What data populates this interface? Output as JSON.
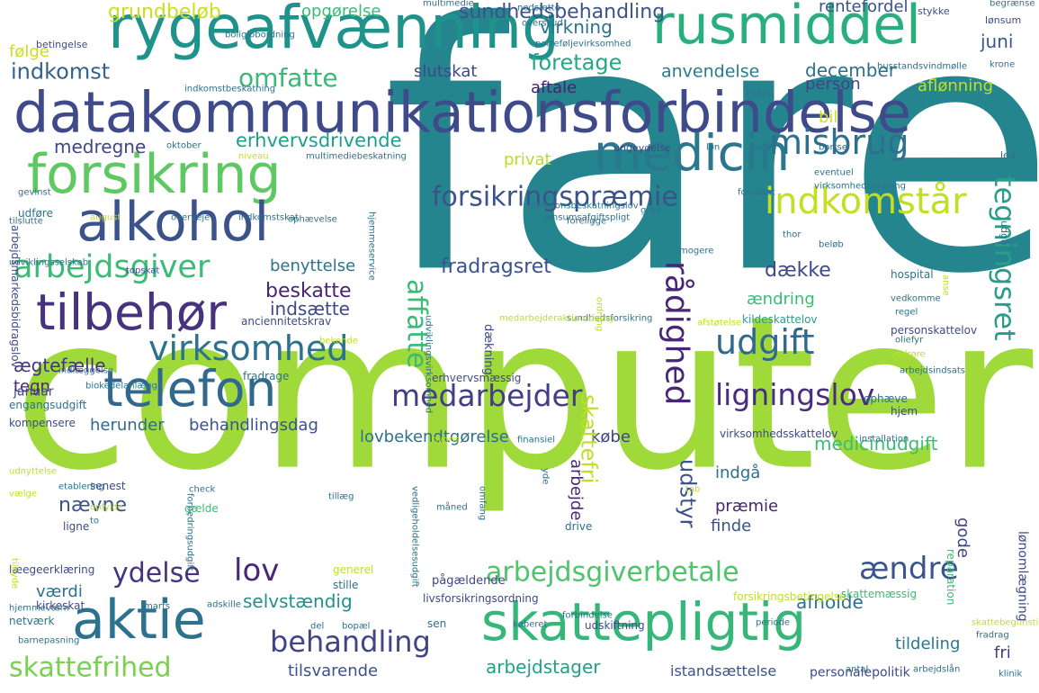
{
  "words": [
    {
      "text": "fare",
      "color": "#25858e"
    },
    {
      "text": "computer",
      "color": "#9fda3a"
    },
    {
      "text": "datakommunikationsforbindelse",
      "color": "#3e4a89"
    },
    {
      "text": "rygeafvænning",
      "color": "#20928c"
    },
    {
      "text": "rusmiddel",
      "color": "#29af7f"
    },
    {
      "text": "forsikring",
      "color": "#5ec962"
    },
    {
      "text": "medicin",
      "color": "#2a788e"
    },
    {
      "text": "alkohol",
      "color": "#3b528b"
    },
    {
      "text": "telefon",
      "color": "#31688e"
    },
    {
      "text": "aktie",
      "color": "#2c728e"
    },
    {
      "text": "skattepligtig",
      "color": "#35b779"
    },
    {
      "text": "tilbehør",
      "color": "#46327e"
    },
    {
      "text": "arbejdsgiver",
      "color": "#3bbb75"
    },
    {
      "text": "virksomhed",
      "color": "#2c728e"
    },
    {
      "text": "misbrug",
      "color": "#2d708e"
    },
    {
      "text": "indkomstår",
      "color": "#c2df23"
    },
    {
      "text": "forsikringspræmie",
      "color": "#3b528b"
    },
    {
      "text": "udgift",
      "color": "#31688e"
    },
    {
      "text": "rådighed",
      "color": "#482576"
    },
    {
      "text": "tegningsret",
      "color": "#2a9d8a"
    },
    {
      "text": "medarbejder",
      "color": "#433e85"
    },
    {
      "text": "ligningslov",
      "color": "#472d7b"
    },
    {
      "text": "behandling",
      "color": "#414487"
    },
    {
      "text": "arbejdsgiverbetale",
      "color": "#50c46a"
    },
    {
      "text": "ændre",
      "color": "#3a548c"
    },
    {
      "text": "skattefrihed",
      "color": "#7ad151"
    },
    {
      "text": "lov",
      "color": "#482878"
    },
    {
      "text": "ydelse",
      "color": "#46337e"
    },
    {
      "text": "omfatte",
      "color": "#38b977"
    },
    {
      "text": "sundhedsbehandling",
      "color": "#3b528b"
    },
    {
      "text": "grundbeløb",
      "color": "#c8e020"
    },
    {
      "text": "foretage",
      "color": "#22a884"
    },
    {
      "text": "virkning",
      "color": "#2c728e"
    },
    {
      "text": "opgørelse",
      "color": "#3bbb75"
    },
    {
      "text": "følge",
      "color": "#c8e020"
    },
    {
      "text": "indkomst",
      "color": "#33628d"
    },
    {
      "text": "juni",
      "color": "#38598c"
    },
    {
      "text": "december",
      "color": "#2d708e"
    },
    {
      "text": "anvendelse",
      "color": "#297a8e"
    },
    {
      "text": "aftale",
      "color": "#482173"
    },
    {
      "text": "slutskat",
      "color": "#3f4889"
    },
    {
      "text": "person",
      "color": "#414487"
    },
    {
      "text": "bil",
      "color": "#d0e11c"
    },
    {
      "text": "aflønning",
      "color": "#c2df23"
    },
    {
      "text": "rentefordel",
      "color": "#3b528b"
    },
    {
      "text": "erhvervsdrivende",
      "color": "#1f9e89"
    },
    {
      "text": "medregne",
      "color": "#404688"
    },
    {
      "text": "privat",
      "color": "#b5de2b"
    },
    {
      "text": "fradragsret",
      "color": "#3b528b"
    },
    {
      "text": "dække",
      "color": "#3f4889"
    },
    {
      "text": "affatte",
      "color": "#3bbb75"
    },
    {
      "text": "beskatte",
      "color": "#482475"
    },
    {
      "text": "indsætte",
      "color": "#3f4889"
    },
    {
      "text": "benyttelse",
      "color": "#2c728e"
    },
    {
      "text": "ændring",
      "color": "#3bbb75"
    },
    {
      "text": "ægtefælle",
      "color": "#46337e"
    },
    {
      "text": "tegn",
      "color": "#482475"
    },
    {
      "text": "januar",
      "color": "#414487"
    },
    {
      "text": "herunder",
      "color": "#31688e"
    },
    {
      "text": "behandlingsdag",
      "color": "#3b528b"
    },
    {
      "text": "lovbekendtgørelse",
      "color": "#2d708e"
    },
    {
      "text": "købe",
      "color": "#414487"
    },
    {
      "text": "skattefri",
      "color": "#bddf26"
    },
    {
      "text": "medicinudgift",
      "color": "#3bbb75"
    },
    {
      "text": "nævne",
      "color": "#3b528b"
    },
    {
      "text": "udstyr",
      "color": "#3b528b"
    },
    {
      "text": "præmie",
      "color": "#482475"
    },
    {
      "text": "arbejde",
      "color": "#482878"
    },
    {
      "text": "indgå",
      "color": "#2d708e"
    },
    {
      "text": "gode",
      "color": "#414487"
    },
    {
      "text": "finde",
      "color": "#3b528b"
    },
    {
      "text": "værdi",
      "color": "#2c728e"
    },
    {
      "text": "selvstændig",
      "color": "#21918c"
    },
    {
      "text": "afholde",
      "color": "#2d708e"
    },
    {
      "text": "tildeling",
      "color": "#2a788e"
    },
    {
      "text": "fri",
      "color": "#433e85"
    },
    {
      "text": "arbejdstager",
      "color": "#1fa187"
    },
    {
      "text": "tilsvarende",
      "color": "#3b528b"
    },
    {
      "text": "istandsættelse",
      "color": "#3b528b"
    },
    {
      "text": "personalepolitik",
      "color": "#3e4a89"
    },
    {
      "text": "lønomlægning",
      "color": "#3e4a89"
    },
    {
      "text": "drive",
      "color": "#2d708e"
    },
    {
      "text": "engangsudgift",
      "color": "#2c728e"
    },
    {
      "text": "kompensere",
      "color": "#3e4a89"
    },
    {
      "text": "fradrage",
      "color": "#2c728e"
    },
    {
      "text": "ophæve",
      "color": "#2d708e"
    },
    {
      "text": "hjem",
      "color": "#3e4a89"
    },
    {
      "text": "anciennitetskrav",
      "color": "#3e4a89"
    },
    {
      "text": "kildeskattelov",
      "color": "#2a9d8a"
    },
    {
      "text": "personskattelov",
      "color": "#3e4a89"
    },
    {
      "text": "hospital",
      "color": "#2c728e"
    },
    {
      "text": "virksomhedsskattelov",
      "color": "#3e4a89"
    },
    {
      "text": "erhvervsmæssig",
      "color": "#3e4a89"
    },
    {
      "text": "dækning",
      "color": "#3e4a89"
    },
    {
      "text": "livsforsikringsordning",
      "color": "#3e4a89"
    },
    {
      "text": "pågældende",
      "color": "#414487"
    },
    {
      "text": "generel",
      "color": "#bddf26"
    },
    {
      "text": "stille",
      "color": "#2c728e"
    },
    {
      "text": "læegeerklæring",
      "color": "#3e4a89"
    },
    {
      "text": "kirkeskat",
      "color": "#3e4a89"
    },
    {
      "text": "netværk",
      "color": "#2c728e"
    },
    {
      "text": "sen",
      "color": "#2c728e"
    },
    {
      "text": "udskiftning",
      "color": "#3e4a89"
    },
    {
      "text": "forsikringsbetingelse",
      "color": "#c2df23"
    },
    {
      "text": "reparation",
      "color": "#3bbb75"
    },
    {
      "text": "skattemæssig",
      "color": "#3bbb75"
    },
    {
      "text": "senest",
      "color": "#3e4a89"
    },
    {
      "text": "ligne",
      "color": "#3e4a89"
    },
    {
      "text": "gælde",
      "color": "#3bbb75"
    },
    {
      "text": "betingelse",
      "color": "#3e4a89"
    },
    {
      "text": "stykke",
      "color": "#3e4a89"
    },
    {
      "text": "lønsum",
      "color": "#3e4a89"
    },
    {
      "text": "inden",
      "color": "#2c728e"
    },
    {
      "text": "udgå",
      "color": "#2c728e"
    },
    {
      "text": "led",
      "color": "#2c728e"
    },
    {
      "text": "ungeydelse",
      "color": "#3e4a89"
    },
    {
      "text": "arbejdsmarkedsbidragslov",
      "color": "#3e4a89"
    },
    {
      "text": "udføre",
      "color": "#2c728e"
    },
    {
      "text": "udviklingsselskab",
      "color": "#2c728e"
    },
    {
      "text": "topskat",
      "color": "#3e4a89"
    },
    {
      "text": "tilslutte",
      "color": "#2c728e"
    },
    {
      "text": "gevinst",
      "color": "#2c728e"
    },
    {
      "text": "oktober",
      "color": "#2c728e"
    },
    {
      "text": "nedsætte",
      "color": "#2c728e"
    },
    {
      "text": "overskud",
      "color": "#2c728e"
    },
    {
      "text": "multimedie",
      "color": "#2c728e"
    },
    {
      "text": "porteføljevirksomhed",
      "color": "#2c728e"
    },
    {
      "text": "boligjobordning",
      "color": "#2c728e"
    },
    {
      "text": "husstandsvindmølle",
      "color": "#2c728e"
    },
    {
      "text": "krone",
      "color": "#2c728e"
    },
    {
      "text": "begrænse",
      "color": "#2c728e"
    },
    {
      "text": "multimediebeskatning",
      "color": "#2c728e"
    },
    {
      "text": "niveau",
      "color": "#c2df23"
    },
    {
      "text": "løn",
      "color": "#2c728e"
    },
    {
      "text": "børn",
      "color": "#2c728e"
    },
    {
      "text": "bortse",
      "color": "#2c728e"
    },
    {
      "text": "eventuel",
      "color": "#2c728e"
    },
    {
      "text": "virksomhedsordning",
      "color": "#2c728e"
    },
    {
      "text": "hjemmeservice",
      "color": "#2c728e"
    },
    {
      "text": "forudsat",
      "color": "#2c728e"
    },
    {
      "text": "grad",
      "color": "#2c728e"
    },
    {
      "text": "pensionsbeskatningslov",
      "color": "#2c728e"
    },
    {
      "text": "lønsumsafgiftspligt",
      "color": "#2c728e"
    },
    {
      "text": "foreligge",
      "color": "#2c728e"
    },
    {
      "text": "mogere",
      "color": "#2c728e"
    },
    {
      "text": "ophævelse",
      "color": "#2c728e"
    },
    {
      "text": "indkomstskat",
      "color": "#2c728e"
    },
    {
      "text": "overveje",
      "color": "#2c728e"
    },
    {
      "text": "august",
      "color": "#c2df23"
    },
    {
      "text": "thor",
      "color": "#2c728e"
    },
    {
      "text": "beløb",
      "color": "#2c728e"
    },
    {
      "text": "vedkomme",
      "color": "#2c728e"
    },
    {
      "text": "regel",
      "color": "#2c728e"
    },
    {
      "text": "oliefyr",
      "color": "#2c728e"
    },
    {
      "text": "sundhedsforsikring",
      "color": "#2c728e"
    },
    {
      "text": "bekende",
      "color": "#c2df23"
    },
    {
      "text": "vedrøre",
      "color": "#c2df23"
    },
    {
      "text": "arbejdsindsats",
      "color": "#2c728e"
    },
    {
      "text": "indlæggelse",
      "color": "#2c728e"
    },
    {
      "text": "biokedelanlægge",
      "color": "#2c728e"
    },
    {
      "text": "nypris",
      "color": "#c2df23"
    },
    {
      "text": "finansiel",
      "color": "#2c728e"
    },
    {
      "text": "installation",
      "color": "#2c728e"
    },
    {
      "text": "etablering",
      "color": "#2c728e"
    },
    {
      "text": "check",
      "color": "#2c728e"
    },
    {
      "text": "tillæg",
      "color": "#2c728e"
    },
    {
      "text": "tab",
      "color": "#c2df23"
    },
    {
      "text": "måned",
      "color": "#2c728e"
    },
    {
      "text": "omfang",
      "color": "#2c728e"
    },
    {
      "text": "forbedringsudgift",
      "color": "#2c728e"
    },
    {
      "text": "vedligeholdelsesudgift",
      "color": "#2c728e"
    },
    {
      "text": "skattebegunstigelse",
      "color": "#c2df23"
    },
    {
      "text": "hjemmeværn",
      "color": "#2c728e"
    },
    {
      "text": "marts",
      "color": "#2c728e"
    },
    {
      "text": "adskille",
      "color": "#2c728e"
    },
    {
      "text": "del",
      "color": "#2c728e"
    },
    {
      "text": "bopæl",
      "color": "#2c728e"
    },
    {
      "text": "køberet",
      "color": "#2c728e"
    },
    {
      "text": "forbindelse",
      "color": "#2c728e"
    },
    {
      "text": "periode",
      "color": "#2c728e"
    },
    {
      "text": "antal",
      "color": "#2c728e"
    },
    {
      "text": "arbejdslån",
      "color": "#2c728e"
    },
    {
      "text": "klinik",
      "color": "#2c728e"
    },
    {
      "text": "fradrag",
      "color": "#2c728e"
    },
    {
      "text": "barnepasning",
      "color": "#2c728e"
    },
    {
      "text": "udnyttelse",
      "color": "#c2df23"
    },
    {
      "text": "vælge",
      "color": "#c2df23"
    },
    {
      "text": "opfylde",
      "color": "#c2df23"
    },
    {
      "text": "to",
      "color": "#2c728e"
    },
    {
      "text": "yde",
      "color": "#2c728e"
    },
    {
      "text": "tilbyde",
      "color": "#c2df23"
    },
    {
      "text": "indkomstbeskatning",
      "color": "#2c728e"
    },
    {
      "text": "afstøtelse",
      "color": "#c2df23"
    },
    {
      "text": "anse",
      "color": "#c2df23"
    },
    {
      "text": "ordning",
      "color": "#c2df23"
    },
    {
      "text": "udviklingsvirksomhed",
      "color": "#2c728e"
    },
    {
      "text": "medarbejderaktieordning",
      "color": "#c2df23"
    },
    {
      "text": "tegne",
      "color": "#2c728e"
    }
  ]
}
